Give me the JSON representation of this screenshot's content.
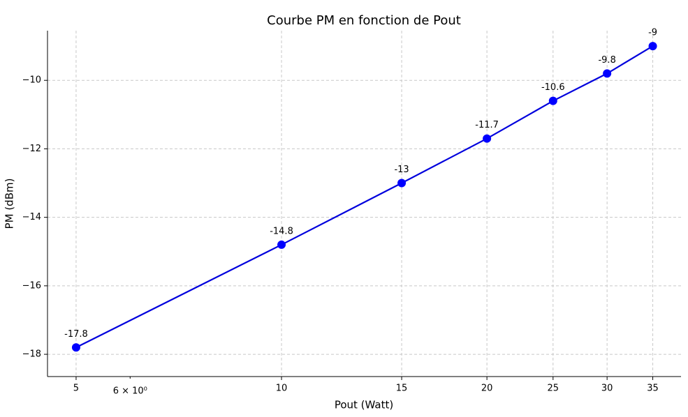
{
  "chart_data": {
    "type": "line",
    "title": "Courbe PM en fonction de Pout",
    "x_label": "Pout (Watt)",
    "y_label": "PM (dBm)",
    "x": [
      5,
      10,
      15,
      20,
      25,
      30,
      35
    ],
    "series": [
      {
        "name": "PM",
        "color": "#0000ff",
        "line_color": "#0000dd",
        "values": [
          -17.8,
          -14.8,
          -13,
          -11.7,
          -10.6,
          -9.8,
          -9
        ]
      }
    ],
    "x_scale": "log",
    "xlim": [
      4.54,
      38.5
    ],
    "ylim": [
      -18.65,
      -8.55
    ],
    "xticks": [
      5,
      10,
      15,
      20,
      25,
      30,
      35
    ],
    "xminorticks": [
      {
        "value": 6,
        "label": "6 × 10⁰"
      }
    ],
    "yticks": [
      {
        "value": -18,
        "label": "−18"
      },
      {
        "value": -16,
        "label": "−16"
      },
      {
        "value": -14,
        "label": "−14"
      },
      {
        "value": -12,
        "label": "−12"
      },
      {
        "value": -10,
        "label": "−10"
      }
    ],
    "grid": true
  }
}
